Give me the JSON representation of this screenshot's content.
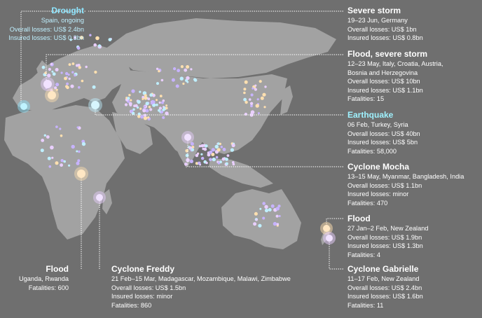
{
  "colors": {
    "background": "#6f6f6f",
    "land": "#a2a2a2",
    "leader": "#ffffff",
    "drought": "#8fe6ff",
    "event_colors": [
      "#e9cfff",
      "#ffe0b0",
      "#bfefff",
      "#c7b3ff"
    ]
  },
  "events": {
    "drought": {
      "title": "Drought",
      "lines": [
        "Spain, ongoing",
        "Overall losses: US$ 2.4bn",
        "Insured losses: US$ 0.3bn"
      ]
    },
    "severe_storm": {
      "title": "Severe storm",
      "lines": [
        "19–23 Jun, Germany",
        "Overall losses: US$ 1bn",
        "Insured losses: US$ 0.8bn"
      ]
    },
    "flood_severe_storm": {
      "title": "Flood, severe storm",
      "lines": [
        "12–23 May, Italy, Croatia, Austria,",
        "Bosnia and Herzegovina",
        "Overall losses: US$ 10bn",
        "Insured losses: US$ 1.1bn",
        "Fatalities: 15"
      ]
    },
    "earthquake": {
      "title": "Earthquake",
      "lines": [
        "06 Feb, Turkey, Syria",
        "Overall losses: US$ 40bn",
        "Insured losses: US$ 5bn",
        "Fatalities: 58,000"
      ]
    },
    "cyclone_mocha": {
      "title": "Cyclone Mocha",
      "lines": [
        "13–15 May, Myanmar, Bangladesh, India",
        "Overall losses: US$ 1.1bn",
        "Insured losses: minor",
        "Fatalities: 470"
      ]
    },
    "flood_nz": {
      "title": "Flood",
      "lines": [
        "27 Jan–2 Feb, New Zealand",
        "Overall losses: US$ 1.9bn",
        "Insured losses: US$ 1.3bn",
        "Fatalities: 4"
      ]
    },
    "cyclone_gabrielle": {
      "title": "Cyclone Gabrielle",
      "lines": [
        "11–17 Feb, New Zealand",
        "Overall losses: US$ 2.4bn",
        "Insured losses: US$ 1.6bn",
        "Fatalities: 11"
      ]
    },
    "cyclone_freddy": {
      "title": "Cyclone Freddy",
      "lines": [
        "21 Feb–15 Mar, Madagascar, Mozambique, Malawi, Zimbabwe",
        "Overall losses: US$ 1.5bn",
        "Insured losses: minor",
        "Fatalities: 860"
      ]
    },
    "flood_uganda": {
      "title": "Flood",
      "lines": [
        "Uganda, Rwanda",
        "Fatalities: 600"
      ]
    }
  }
}
